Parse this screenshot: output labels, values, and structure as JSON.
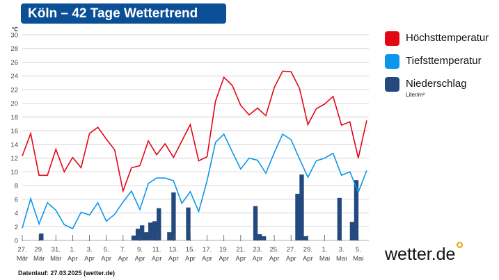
{
  "header": {
    "title": "Köln – 42 Tage Wettertrend"
  },
  "legend": [
    {
      "label": "Höchsttemperatur",
      "color": "#e30613"
    },
    {
      "label": "Tiefsttemperatur",
      "color": "#0a96ea"
    },
    {
      "label": "Niederschlag",
      "unit": "Liter/m²",
      "color": "#23497e"
    }
  ],
  "logo": "wetter.de",
  "footer": "Datenlauf: 27.03.2025 (wetter.de)",
  "chart_data": {
    "type": "line+bar",
    "ylabel": "°C",
    "ylim": [
      0,
      30
    ],
    "yticks": [
      0,
      2,
      4,
      6,
      8,
      10,
      12,
      14,
      16,
      18,
      20,
      22,
      24,
      26,
      28,
      30
    ],
    "grid": true,
    "legend_position": "right",
    "x": [
      "27.03.",
      "28.03.",
      "29.03.",
      "30.03.",
      "31.03.",
      "01.04.",
      "02.04.",
      "03.04.",
      "04.04.",
      "05.04.",
      "06.04.",
      "07.04.",
      "08.04.",
      "09.04.",
      "10.04.",
      "11.04.",
      "12.04.",
      "13.04.",
      "14.04.",
      "15.04.",
      "16.04.",
      "17.04.",
      "18.04.",
      "19.04.",
      "20.04.",
      "21.04.",
      "22.04.",
      "23.04.",
      "24.04.",
      "25.04.",
      "26.04.",
      "27.04.",
      "28.04.",
      "29.04.",
      "30.04.",
      "01.05.",
      "02.05.",
      "03.05.",
      "04.05.",
      "05.05.",
      "06.05.",
      "07.05."
    ],
    "xticks": [
      {
        "day": "27.",
        "month": "Mär"
      },
      {
        "day": "29.",
        "month": "Mär"
      },
      {
        "day": "31.",
        "month": "Mär"
      },
      {
        "day": "1.",
        "month": "Apr"
      },
      {
        "day": "3.",
        "month": "Apr"
      },
      {
        "day": "5.",
        "month": "Apr"
      },
      {
        "day": "7.",
        "month": "Apr"
      },
      {
        "day": "9.",
        "month": "Apr"
      },
      {
        "day": "11.",
        "month": "Apr"
      },
      {
        "day": "13.",
        "month": "Apr"
      },
      {
        "day": "15.",
        "month": "Apr"
      },
      {
        "day": "17.",
        "month": "Apr"
      },
      {
        "day": "19.",
        "month": "Apr"
      },
      {
        "day": "21.",
        "month": "Apr"
      },
      {
        "day": "23.",
        "month": "Apr"
      },
      {
        "day": "25.",
        "month": "Apr"
      },
      {
        "day": "27.",
        "month": "Apr"
      },
      {
        "day": "29.",
        "month": "Apr"
      },
      {
        "day": "1.",
        "month": "Mai"
      },
      {
        "day": "3.",
        "month": "Mai"
      },
      {
        "day": "5.",
        "month": "Mai"
      }
    ],
    "series": [
      {
        "name": "Höchsttemperatur",
        "type": "line",
        "color": "#e30613",
        "values": [
          12.3,
          15.6,
          9.5,
          9.5,
          13.3,
          10.0,
          12.1,
          10.6,
          15.6,
          16.5,
          14.8,
          13.2,
          7.2,
          10.6,
          10.9,
          14.5,
          12.5,
          14.1,
          12.1,
          14.5,
          16.9,
          11.6,
          12.2,
          20.3,
          23.8,
          22.6,
          19.7,
          18.3,
          19.3,
          18.2,
          22.3,
          24.7,
          24.6,
          22.2,
          16.9,
          19.2,
          19.9,
          21.0,
          16.8,
          17.3,
          12.0,
          17.5
        ]
      },
      {
        "name": "Tiefsttemperatur",
        "type": "line",
        "color": "#0a96ea",
        "values": [
          1.8,
          6.1,
          2.4,
          5.5,
          4.4,
          2.3,
          1.7,
          4.1,
          3.7,
          5.5,
          2.8,
          3.8,
          5.6,
          7.2,
          4.5,
          8.3,
          9.1,
          9.1,
          8.7,
          5.4,
          7.1,
          4.2,
          8.7,
          14.3,
          15.5,
          12.9,
          10.4,
          12.0,
          11.7,
          9.8,
          12.8,
          15.5,
          14.7,
          11.9,
          9.2,
          11.6,
          12.0,
          12.7,
          9.5,
          10.0,
          7.0,
          10.2
        ]
      },
      {
        "name": "Niederschlag",
        "type": "bar",
        "unit": "Liter/m²",
        "color": "#23497e",
        "interval_hours": 12,
        "values": [
          {
            "time": "29.03. 00:00",
            "value": 1.0
          },
          {
            "time": "09.04. 00:00",
            "value": 0.7
          },
          {
            "time": "09.04. 12:00",
            "value": 1.7
          },
          {
            "time": "10.04. 00:00",
            "value": 2.2
          },
          {
            "time": "10.04. 12:00",
            "value": 1.2
          },
          {
            "time": "11.04. 00:00",
            "value": 2.6
          },
          {
            "time": "11.04. 12:00",
            "value": 2.8
          },
          {
            "time": "12.04. 00:00",
            "value": 4.7
          },
          {
            "time": "13.04. 06:00",
            "value": 1.2
          },
          {
            "time": "13.04. 18:00",
            "value": 7.0
          },
          {
            "time": "15.04. 12:00",
            "value": 4.8
          },
          {
            "time": "23.04. 12:00",
            "value": 5.0
          },
          {
            "time": "24.04. 00:00",
            "value": 0.9
          },
          {
            "time": "24.04. 12:00",
            "value": 0.6
          },
          {
            "time": "28.04. 12:00",
            "value": 6.8
          },
          {
            "time": "29.04. 00:00",
            "value": 9.6
          },
          {
            "time": "29.04. 12:00",
            "value": 0.6
          },
          {
            "time": "03.05. 12:00",
            "value": 6.2
          },
          {
            "time": "05.05. 00:00",
            "value": 2.7
          },
          {
            "time": "05.05. 12:00",
            "value": 8.8
          }
        ]
      }
    ]
  }
}
